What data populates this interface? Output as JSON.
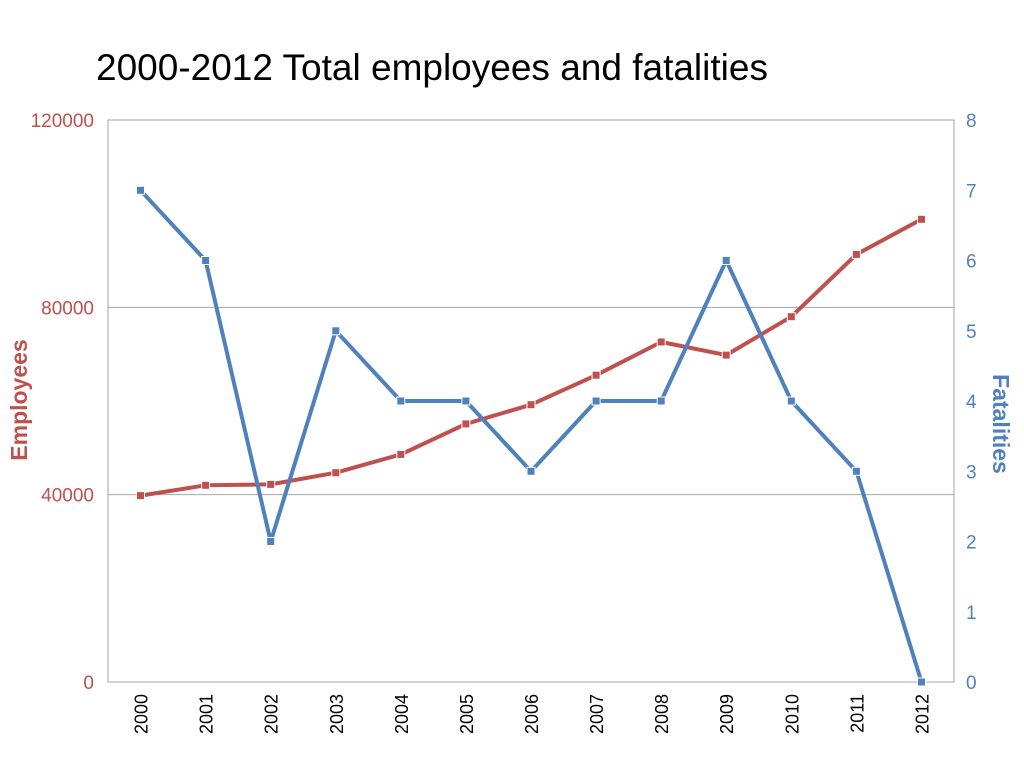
{
  "chart_data": {
    "type": "line",
    "title": "2000-2012 Total employees and fatalities",
    "categories": [
      "2000",
      "2001",
      "2002",
      "2003",
      "2004",
      "2005",
      "2006",
      "2007",
      "2008",
      "2009",
      "2010",
      "2011",
      "2012"
    ],
    "series": [
      {
        "name": "Employees",
        "axis": "left",
        "color": "#c0504d",
        "values": [
          39800,
          42000,
          42200,
          44700,
          48600,
          55100,
          59200,
          65500,
          72600,
          69800,
          78000,
          91300,
          98800
        ]
      },
      {
        "name": "Fatalities",
        "axis": "right",
        "color": "#4f81bd",
        "values": [
          7,
          6,
          2,
          5,
          4,
          4,
          3,
          4,
          4,
          6,
          4,
          3,
          0
        ]
      }
    ],
    "y_left": {
      "label": "Employees",
      "range": [
        0,
        120000
      ],
      "ticks": [
        "0",
        "40000",
        "80000",
        "120000"
      ],
      "color": "#c0504d"
    },
    "y_right": {
      "label": "Fatalities",
      "range": [
        0,
        8
      ],
      "ticks": [
        "0",
        "1",
        "2",
        "3",
        "4",
        "5",
        "6",
        "7",
        "8"
      ],
      "color": "#4f81bd"
    },
    "grid": true,
    "grid_color": "#a6a6a6",
    "legend": "none"
  }
}
